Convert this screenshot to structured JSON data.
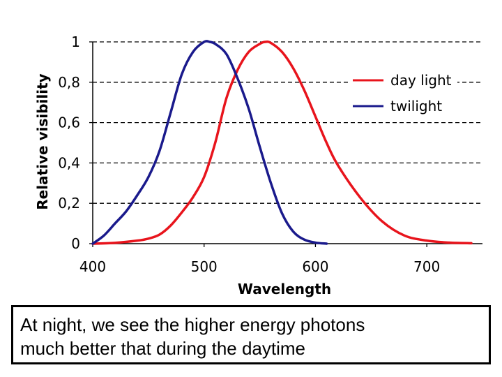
{
  "chart_data": {
    "type": "line",
    "title": "",
    "xlabel": "Wavelength",
    "ylabel": "Relative visibility",
    "xlim": [
      400,
      750
    ],
    "ylim": [
      0,
      1
    ],
    "x_ticks": [
      400,
      500,
      600,
      700
    ],
    "x_tick_labels": [
      "400",
      "500",
      "600",
      "700"
    ],
    "y_ticks": [
      0,
      0.2,
      0.4,
      0.6,
      0.8,
      1
    ],
    "y_tick_labels": [
      "0",
      "0,2",
      "0,4",
      "0,6",
      "0,8",
      "1"
    ],
    "grid": "horizontal-dashed",
    "legend_position": "top-right",
    "series": [
      {
        "name": "day light",
        "color": "#e8141c",
        "x": [
          400,
          420,
          440,
          450,
          460,
          470,
          480,
          490,
          500,
          510,
          520,
          530,
          540,
          550,
          555,
          560,
          570,
          580,
          590,
          600,
          610,
          620,
          640,
          660,
          680,
          700,
          720,
          740
        ],
        "y": [
          0.0,
          0.004,
          0.015,
          0.025,
          0.045,
          0.09,
          0.155,
          0.23,
          0.33,
          0.5,
          0.72,
          0.86,
          0.95,
          0.99,
          1.0,
          0.995,
          0.95,
          0.87,
          0.76,
          0.63,
          0.5,
          0.39,
          0.23,
          0.11,
          0.04,
          0.015,
          0.005,
          0.002
        ]
      },
      {
        "name": "twilight",
        "color": "#1a1a8c",
        "x": [
          400,
          410,
          420,
          430,
          440,
          450,
          460,
          470,
          480,
          490,
          500,
          505,
          510,
          520,
          530,
          540,
          550,
          560,
          570,
          580,
          590,
          600,
          610
        ],
        "y": [
          0.0,
          0.04,
          0.1,
          0.16,
          0.24,
          0.33,
          0.46,
          0.65,
          0.84,
          0.95,
          1.0,
          1.0,
          0.99,
          0.94,
          0.82,
          0.67,
          0.48,
          0.3,
          0.15,
          0.06,
          0.02,
          0.005,
          0.0
        ]
      }
    ]
  },
  "caption": {
    "line1": "At night, we see the higher energy photons",
    "line2": "much better that during the daytime"
  }
}
